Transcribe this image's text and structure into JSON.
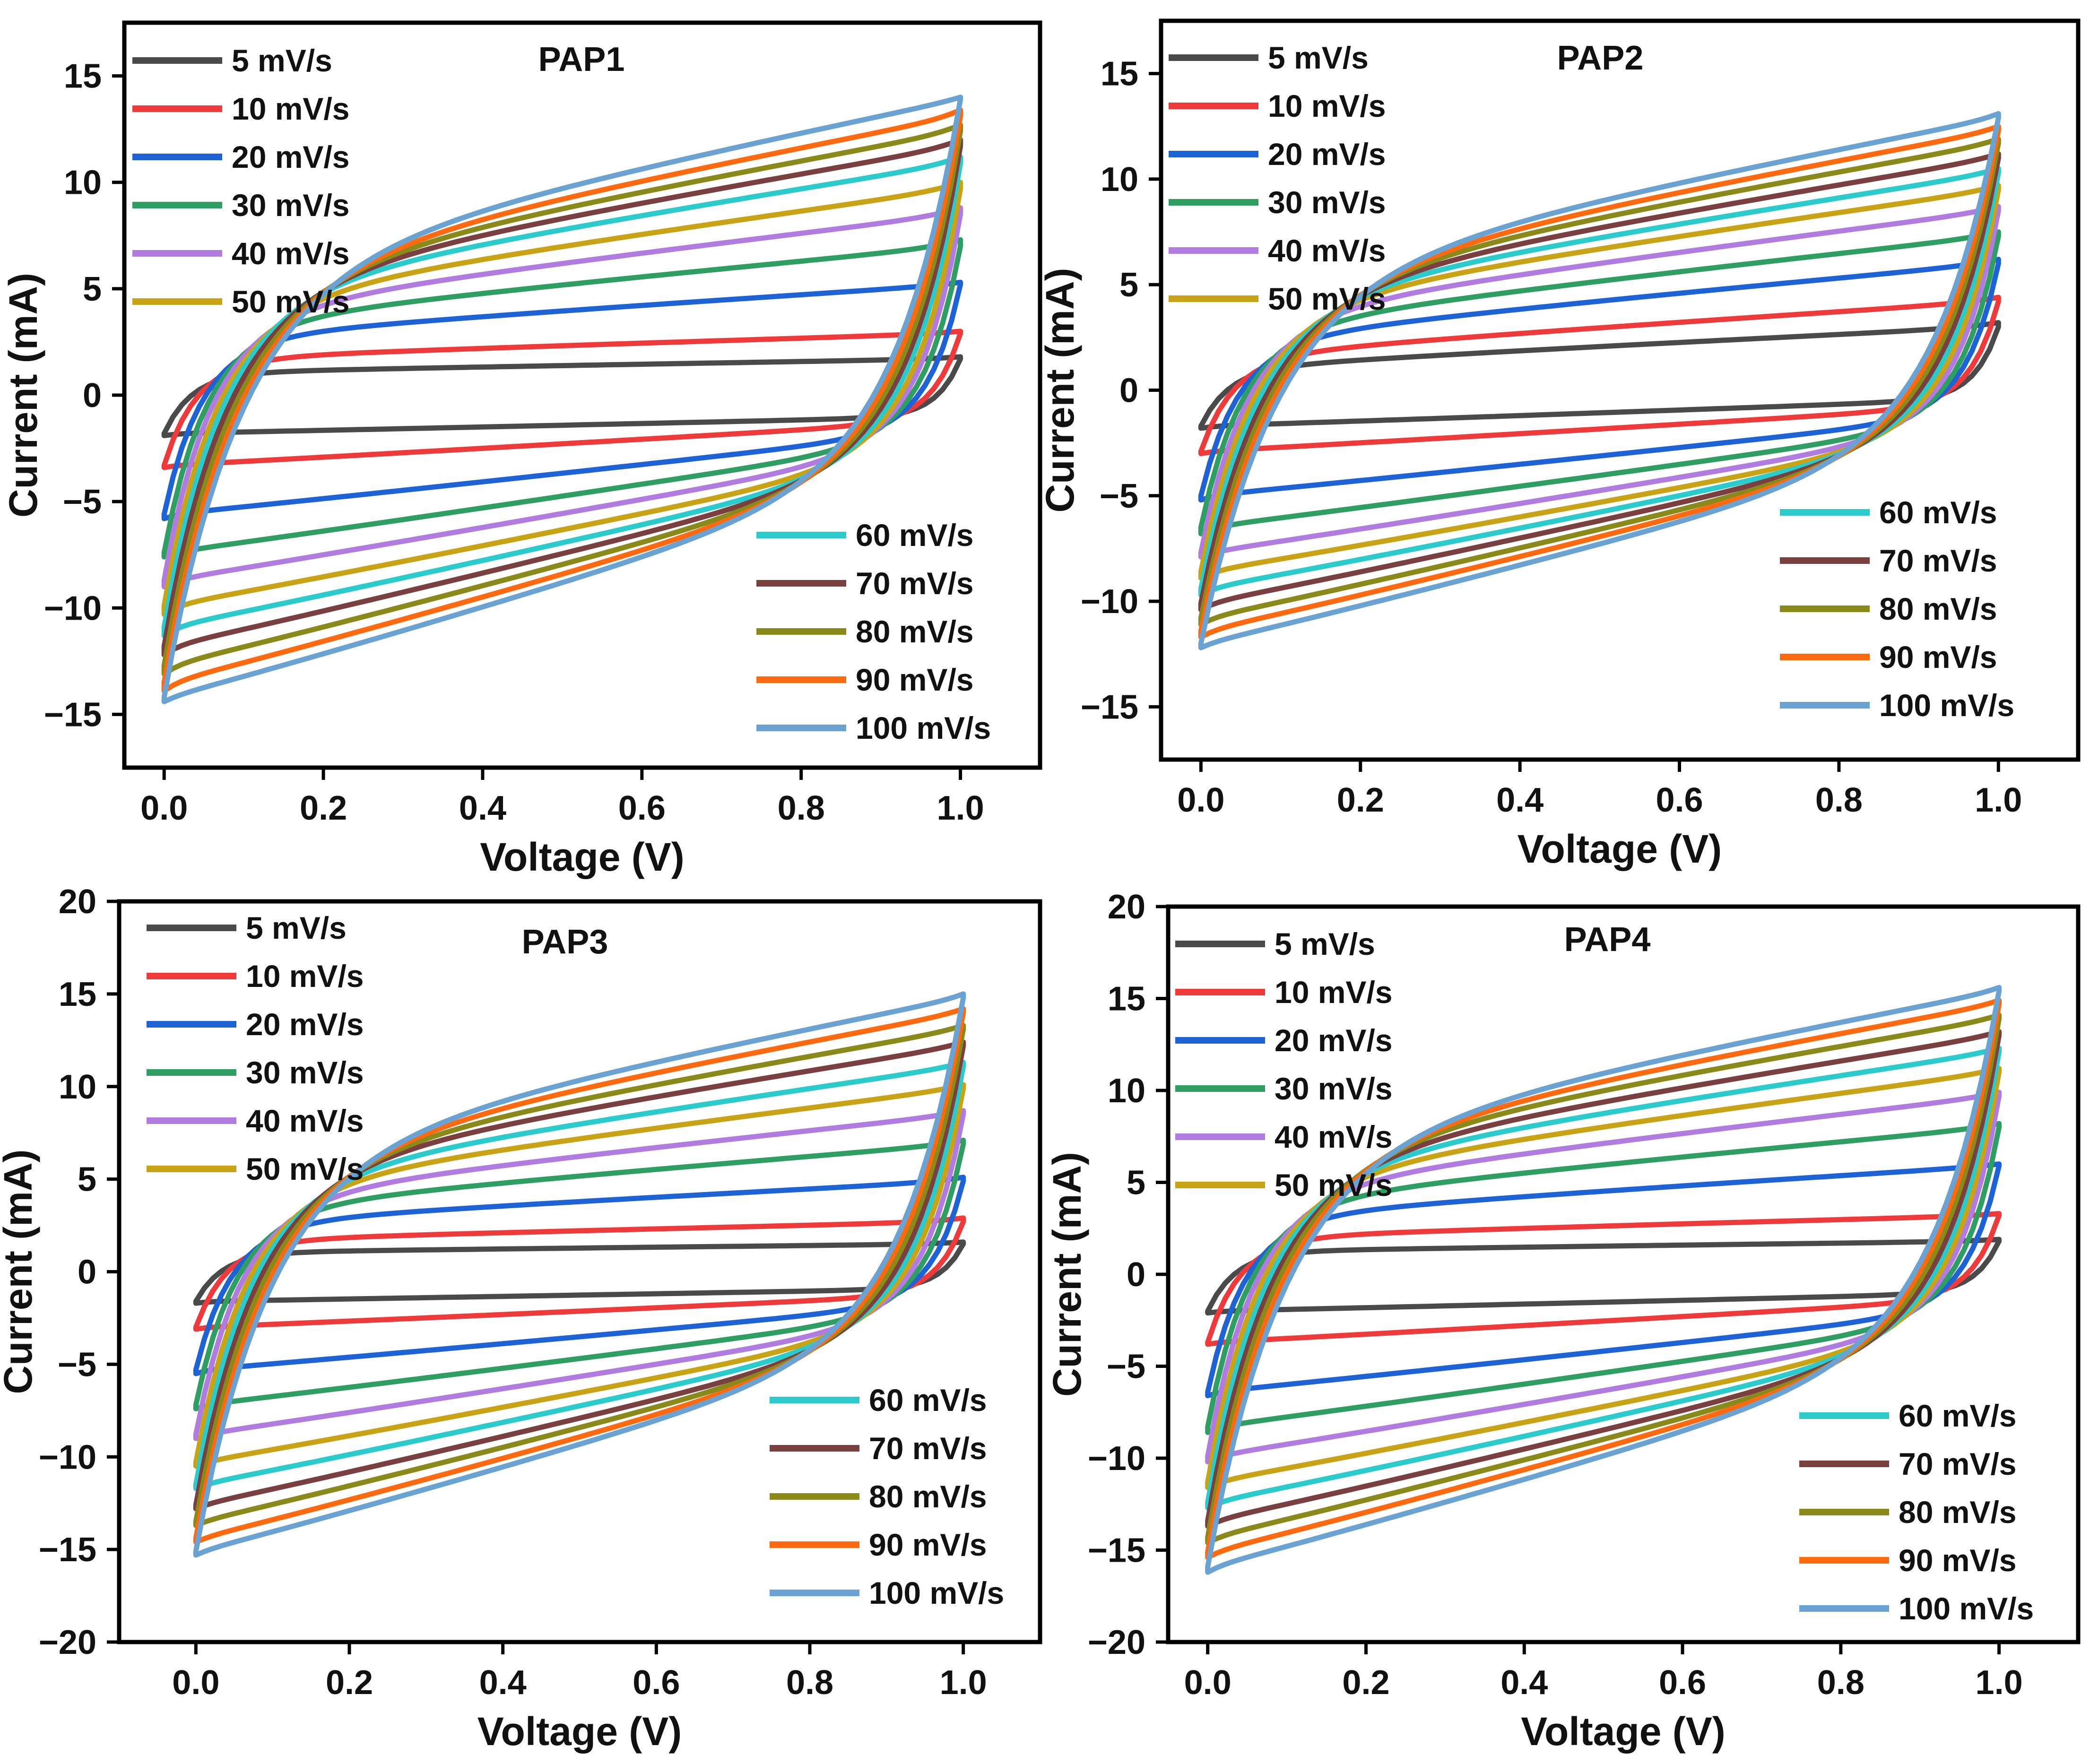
{
  "figure": {
    "panel_count": 4
  },
  "chart_data": [
    {
      "type": "line",
      "title": "PAP1",
      "xlabel": "Voltage (V)",
      "ylabel": "Current (mA)",
      "xlim": [
        -0.05,
        1.1
      ],
      "ylim": [
        -17.5,
        17.5
      ],
      "xticks": [
        "0.0",
        "0.2",
        "0.4",
        "0.6",
        "0.8",
        "1.0"
      ],
      "xtick_values": [
        0,
        0.2,
        0.4,
        0.6,
        0.8,
        1.0
      ],
      "yticks": [
        "15",
        "10",
        "5",
        "0",
        "−5",
        "−10",
        "−15"
      ],
      "ytick_values": [
        15,
        10,
        5,
        0,
        -5,
        -10,
        -15
      ],
      "legend_positions": [
        "top-left",
        "bottom-right"
      ],
      "series": [
        {
          "name": "5 mV/s",
          "color": "#4a4a4a",
          "i_anodic_low": 1.0,
          "i_anodic_high": 1.7,
          "i_cathodic_low": -1.8,
          "i_cathodic_high": -1.0,
          "i_peak": 1.8,
          "i_min": -1.9
        },
        {
          "name": "10 mV/s",
          "color": "#ee3a3a",
          "i_anodic_low": 1.6,
          "i_anodic_high": 2.9,
          "i_cathodic_low": -3.3,
          "i_cathodic_high": -1.2,
          "i_peak": 3.0,
          "i_min": -3.4
        },
        {
          "name": "20 mV/s",
          "color": "#1e63d6",
          "i_anodic_low": 2.4,
          "i_anodic_high": 5.2,
          "i_cathodic_low": -5.6,
          "i_cathodic_high": -1.6,
          "i_peak": 5.3,
          "i_min": -5.8
        },
        {
          "name": "30 mV/s",
          "color": "#2e9e63",
          "i_anodic_low": 2.9,
          "i_anodic_high": 7.0,
          "i_cathodic_low": -7.4,
          "i_cathodic_high": -1.9,
          "i_peak": 7.3,
          "i_min": -7.6
        },
        {
          "name": "40 mV/s",
          "color": "#b07ce0",
          "i_anodic_low": 3.3,
          "i_anodic_high": 8.5,
          "i_cathodic_low": -8.7,
          "i_cathodic_high": -2.2,
          "i_peak": 8.8,
          "i_min": -9.0
        },
        {
          "name": "50 mV/s",
          "color": "#c9a316",
          "i_anodic_low": 3.6,
          "i_anodic_high": 9.7,
          "i_cathodic_low": -9.9,
          "i_cathodic_high": -2.5,
          "i_peak": 10.0,
          "i_min": -10.3
        },
        {
          "name": "60 mV/s",
          "color": "#2bcbcb",
          "i_anodic_low": 3.9,
          "i_anodic_high": 10.9,
          "i_cathodic_low": -10.9,
          "i_cathodic_high": -2.7,
          "i_peak": 11.2,
          "i_min": -11.3
        },
        {
          "name": "70 mV/s",
          "color": "#7a4040",
          "i_anodic_low": 4.1,
          "i_anodic_high": 11.7,
          "i_cathodic_low": -11.8,
          "i_cathodic_high": -2.8,
          "i_peak": 12.0,
          "i_min": -12.2
        },
        {
          "name": "80 mV/s",
          "color": "#8a8a1a",
          "i_anodic_low": 4.3,
          "i_anodic_high": 12.4,
          "i_cathodic_low": -12.7,
          "i_cathodic_high": -2.9,
          "i_peak": 12.7,
          "i_min": -13.1
        },
        {
          "name": "90 mV/s",
          "color": "#ff6a10",
          "i_anodic_low": 4.5,
          "i_anodic_high": 13.1,
          "i_cathodic_low": -13.5,
          "i_cathodic_high": -3.0,
          "i_peak": 13.4,
          "i_min": -13.9
        },
        {
          "name": "100 mV/s",
          "color": "#6aa3d2",
          "i_anodic_low": 4.7,
          "i_anodic_high": 13.9,
          "i_cathodic_low": -14.2,
          "i_cathodic_high": -3.1,
          "i_peak": 14.0,
          "i_min": -14.4
        }
      ]
    },
    {
      "type": "line",
      "title": "PAP2",
      "xlabel": "Voltage (V)",
      "ylabel": "Current (mA)",
      "xlim": [
        -0.05,
        1.1
      ],
      "ylim": [
        -17.5,
        17.5
      ],
      "xticks": [
        "0.0",
        "0.2",
        "0.4",
        "0.6",
        "0.8",
        "1.0"
      ],
      "xtick_values": [
        0,
        0.2,
        0.4,
        0.6,
        0.8,
        1.0
      ],
      "yticks": [
        "15",
        "10",
        "5",
        "0",
        "−5",
        "−10",
        "−15"
      ],
      "ytick_values": [
        15,
        10,
        5,
        0,
        -5,
        -10,
        -15
      ],
      "legend_positions": [
        "top-left",
        "bottom-right"
      ],
      "series": [
        {
          "name": "5 mV/s",
          "color": "#4a4a4a",
          "i_anodic_low": 0.9,
          "i_anodic_high": 3.0,
          "i_cathodic_low": -1.7,
          "i_cathodic_high": -0.4,
          "i_peak": 3.2,
          "i_min": -1.8
        },
        {
          "name": "10 mV/s",
          "color": "#ee3a3a",
          "i_anodic_low": 1.4,
          "i_anodic_high": 4.2,
          "i_cathodic_low": -2.9,
          "i_cathodic_high": -0.7,
          "i_peak": 4.4,
          "i_min": -3.0
        },
        {
          "name": "20 mV/s",
          "color": "#1e63d6",
          "i_anodic_low": 2.0,
          "i_anodic_high": 6.0,
          "i_cathodic_low": -5.0,
          "i_cathodic_high": -1.1,
          "i_peak": 6.2,
          "i_min": -5.2
        },
        {
          "name": "30 mV/s",
          "color": "#2e9e63",
          "i_anodic_low": 2.5,
          "i_anodic_high": 7.3,
          "i_cathodic_low": -6.5,
          "i_cathodic_high": -1.4,
          "i_peak": 7.5,
          "i_min": -6.8
        },
        {
          "name": "40 mV/s",
          "color": "#b07ce0",
          "i_anodic_low": 2.9,
          "i_anodic_high": 8.5,
          "i_cathodic_low": -7.7,
          "i_cathodic_high": -1.6,
          "i_peak": 8.7,
          "i_min": -7.9
        },
        {
          "name": "50 mV/s",
          "color": "#c9a316",
          "i_anodic_low": 3.2,
          "i_anodic_high": 9.5,
          "i_cathodic_low": -8.6,
          "i_cathodic_high": -1.8,
          "i_peak": 9.7,
          "i_min": -8.9
        },
        {
          "name": "60 mV/s",
          "color": "#2bcbcb",
          "i_anodic_low": 3.4,
          "i_anodic_high": 10.3,
          "i_cathodic_low": -9.4,
          "i_cathodic_high": -1.9,
          "i_peak": 10.5,
          "i_min": -9.7
        },
        {
          "name": "70 mV/s",
          "color": "#7a4040",
          "i_anodic_low": 3.6,
          "i_anodic_high": 11.0,
          "i_cathodic_low": -10.1,
          "i_cathodic_high": -2.0,
          "i_peak": 11.2,
          "i_min": -10.4
        },
        {
          "name": "80 mV/s",
          "color": "#8a8a1a",
          "i_anodic_low": 3.8,
          "i_anodic_high": 11.7,
          "i_cathodic_low": -10.8,
          "i_cathodic_high": -2.1,
          "i_peak": 11.9,
          "i_min": -11.1
        },
        {
          "name": "90 mV/s",
          "color": "#ff6a10",
          "i_anodic_low": 4.0,
          "i_anodic_high": 12.3,
          "i_cathodic_low": -11.4,
          "i_cathodic_high": -2.2,
          "i_peak": 12.5,
          "i_min": -11.7
        },
        {
          "name": "100 mV/s",
          "color": "#6aa3d2",
          "i_anodic_low": 4.2,
          "i_anodic_high": 12.9,
          "i_cathodic_low": -12.0,
          "i_cathodic_high": -2.3,
          "i_peak": 13.1,
          "i_min": -12.2
        }
      ]
    },
    {
      "type": "line",
      "title": "PAP3",
      "xlabel": "Voltage (V)",
      "ylabel": "Current (mA)",
      "xlim": [
        -0.1,
        1.1
      ],
      "ylim": [
        -20,
        20
      ],
      "xticks": [
        "0.0",
        "0.2",
        "0.4",
        "0.6",
        "0.8",
        "1.0"
      ],
      "xtick_values": [
        0,
        0.2,
        0.4,
        0.6,
        0.8,
        1.0
      ],
      "yticks": [
        "20",
        "15",
        "10",
        "5",
        "0",
        "−5",
        "−10",
        "−15",
        "−20"
      ],
      "ytick_values": [
        20,
        15,
        10,
        5,
        0,
        -5,
        -10,
        -15,
        -20
      ],
      "legend_positions": [
        "top-left",
        "bottom-right"
      ],
      "series": [
        {
          "name": "5 mV/s",
          "color": "#4a4a4a",
          "i_anodic_low": 1.0,
          "i_anodic_high": 1.5,
          "i_cathodic_low": -1.6,
          "i_cathodic_high": -0.9,
          "i_peak": 1.6,
          "i_min": -1.7
        },
        {
          "name": "10 mV/s",
          "color": "#ee3a3a",
          "i_anodic_low": 1.6,
          "i_anodic_high": 2.7,
          "i_cathodic_low": -3.0,
          "i_cathodic_high": -1.2,
          "i_peak": 2.9,
          "i_min": -3.1
        },
        {
          "name": "20 mV/s",
          "color": "#1e63d6",
          "i_anodic_low": 2.4,
          "i_anodic_high": 4.9,
          "i_cathodic_low": -5.3,
          "i_cathodic_high": -1.6,
          "i_peak": 5.1,
          "i_min": -5.5
        },
        {
          "name": "30 mV/s",
          "color": "#2e9e63",
          "i_anodic_low": 3.0,
          "i_anodic_high": 6.9,
          "i_cathodic_low": -7.2,
          "i_cathodic_high": -2.0,
          "i_peak": 7.1,
          "i_min": -7.4
        },
        {
          "name": "40 mV/s",
          "color": "#b07ce0",
          "i_anodic_low": 3.4,
          "i_anodic_high": 8.5,
          "i_cathodic_low": -8.8,
          "i_cathodic_high": -2.3,
          "i_peak": 8.7,
          "i_min": -9.0
        },
        {
          "name": "50 mV/s",
          "color": "#c9a316",
          "i_anodic_low": 3.8,
          "i_anodic_high": 9.9,
          "i_cathodic_low": -10.3,
          "i_cathodic_high": -2.5,
          "i_peak": 10.1,
          "i_min": -10.5
        },
        {
          "name": "60 mV/s",
          "color": "#2bcbcb",
          "i_anodic_low": 4.1,
          "i_anodic_high": 11.1,
          "i_cathodic_low": -11.5,
          "i_cathodic_high": -2.7,
          "i_peak": 11.3,
          "i_min": -11.7
        },
        {
          "name": "70 mV/s",
          "color": "#7a4040",
          "i_anodic_low": 4.4,
          "i_anodic_high": 12.2,
          "i_cathodic_low": -12.6,
          "i_cathodic_high": -2.9,
          "i_peak": 12.4,
          "i_min": -12.8
        },
        {
          "name": "80 mV/s",
          "color": "#8a8a1a",
          "i_anodic_low": 4.6,
          "i_anodic_high": 13.1,
          "i_cathodic_low": -13.5,
          "i_cathodic_high": -3.0,
          "i_peak": 13.3,
          "i_min": -13.7
        },
        {
          "name": "90 mV/s",
          "color": "#ff6a10",
          "i_anodic_low": 4.8,
          "i_anodic_high": 14.0,
          "i_cathodic_low": -14.4,
          "i_cathodic_high": -3.1,
          "i_peak": 14.2,
          "i_min": -14.6
        },
        {
          "name": "100 mV/s",
          "color": "#6aa3d2",
          "i_anodic_low": 5.0,
          "i_anodic_high": 14.8,
          "i_cathodic_low": -15.1,
          "i_cathodic_high": -3.2,
          "i_peak": 15.0,
          "i_min": -15.3
        }
      ]
    },
    {
      "type": "line",
      "title": "PAP4",
      "xlabel": "Voltage (V)",
      "ylabel": "Current (mA)",
      "xlim": [
        -0.05,
        1.1
      ],
      "ylim": [
        -20,
        20
      ],
      "xticks": [
        "0.0",
        "0.2",
        "0.4",
        "0.6",
        "0.8",
        "1.0"
      ],
      "xtick_values": [
        0,
        0.2,
        0.4,
        0.6,
        0.8,
        1.0
      ],
      "yticks": [
        "20",
        "15",
        "10",
        "5",
        "0",
        "−5",
        "−10",
        "−15",
        "−20"
      ],
      "ytick_values": [
        20,
        15,
        10,
        5,
        0,
        -5,
        -10,
        -15,
        -20
      ],
      "legend_positions": [
        "top-left",
        "bottom-right"
      ],
      "series": [
        {
          "name": "5 mV/s",
          "color": "#4a4a4a",
          "i_anodic_low": 1.2,
          "i_anodic_high": 1.8,
          "i_cathodic_low": -2.0,
          "i_cathodic_high": -1.0,
          "i_peak": 1.9,
          "i_min": -2.1
        },
        {
          "name": "10 mV/s",
          "color": "#ee3a3a",
          "i_anodic_low": 1.9,
          "i_anodic_high": 3.2,
          "i_cathodic_low": -3.7,
          "i_cathodic_high": -1.3,
          "i_peak": 3.3,
          "i_min": -3.8
        },
        {
          "name": "20 mV/s",
          "color": "#1e63d6",
          "i_anodic_low": 2.8,
          "i_anodic_high": 5.9,
          "i_cathodic_low": -6.4,
          "i_cathodic_high": -1.8,
          "i_peak": 6.0,
          "i_min": -6.6
        },
        {
          "name": "30 mV/s",
          "color": "#2e9e63",
          "i_anodic_low": 3.4,
          "i_anodic_high": 8.0,
          "i_cathodic_low": -8.3,
          "i_cathodic_high": -2.2,
          "i_peak": 8.2,
          "i_min": -8.6
        },
        {
          "name": "40 mV/s",
          "color": "#b07ce0",
          "i_anodic_low": 3.9,
          "i_anodic_high": 9.7,
          "i_cathodic_low": -9.9,
          "i_cathodic_high": -2.5,
          "i_peak": 9.9,
          "i_min": -10.2
        },
        {
          "name": "50 mV/s",
          "color": "#c9a316",
          "i_anodic_low": 4.3,
          "i_anodic_high": 11.0,
          "i_cathodic_low": -11.3,
          "i_cathodic_high": -2.8,
          "i_peak": 11.2,
          "i_min": -11.6
        },
        {
          "name": "60 mV/s",
          "color": "#2bcbcb",
          "i_anodic_low": 4.6,
          "i_anodic_high": 12.1,
          "i_cathodic_low": -12.4,
          "i_cathodic_high": -3.0,
          "i_peak": 12.3,
          "i_min": -12.7
        },
        {
          "name": "70 mV/s",
          "color": "#7a4040",
          "i_anodic_low": 4.9,
          "i_anodic_high": 13.0,
          "i_cathodic_low": -13.4,
          "i_cathodic_high": -3.2,
          "i_peak": 13.2,
          "i_min": -13.7
        },
        {
          "name": "80 mV/s",
          "color": "#8a8a1a",
          "i_anodic_low": 5.2,
          "i_anodic_high": 13.9,
          "i_cathodic_low": -14.3,
          "i_cathodic_high": -3.3,
          "i_peak": 14.1,
          "i_min": -14.6
        },
        {
          "name": "90 mV/s",
          "color": "#ff6a10",
          "i_anodic_low": 5.4,
          "i_anodic_high": 14.7,
          "i_cathodic_low": -15.1,
          "i_cathodic_high": -3.4,
          "i_peak": 14.9,
          "i_min": -15.4
        },
        {
          "name": "100 mV/s",
          "color": "#6aa3d2",
          "i_anodic_low": 5.6,
          "i_anodic_high": 15.4,
          "i_cathodic_low": -15.9,
          "i_cathodic_high": -3.5,
          "i_peak": 15.6,
          "i_min": -16.2
        }
      ]
    }
  ]
}
